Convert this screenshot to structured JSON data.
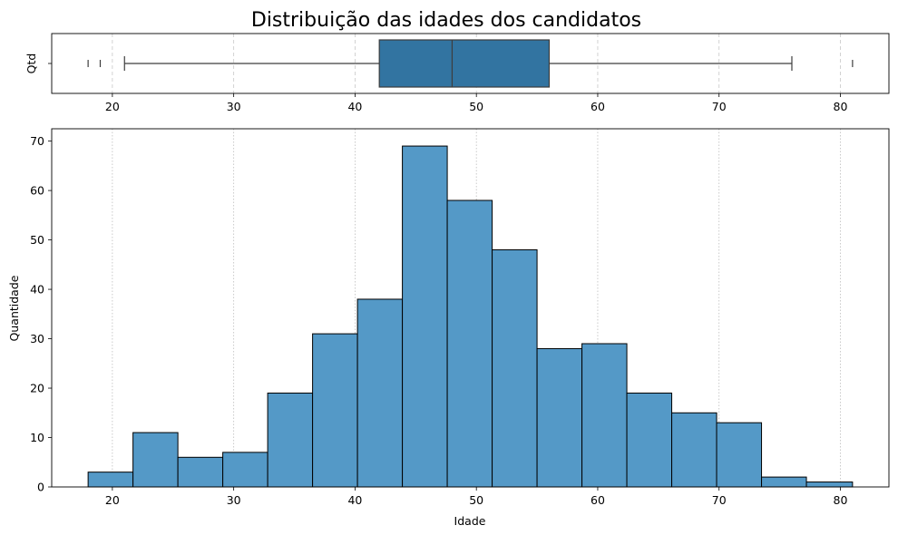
{
  "chart_data": [
    {
      "type": "box",
      "title": "Distribuição das idades dos candidatos",
      "ylabel": "Qtd",
      "xlim": [
        15,
        84
      ],
      "x_ticks": [
        20,
        30,
        40,
        50,
        60,
        70,
        80
      ],
      "grid": "x dashed",
      "box": {
        "whisker_low": 21,
        "q1": 42,
        "median": 48,
        "q3": 56,
        "whisker_high": 76
      },
      "outliers": [
        18,
        19,
        81
      ],
      "color": "#3274a1"
    },
    {
      "type": "histogram",
      "xlabel": "Idade",
      "ylabel": "Quantidade",
      "xlim": [
        15,
        84
      ],
      "ylim": [
        0,
        72.5
      ],
      "x_ticks": [
        20,
        30,
        40,
        50,
        60,
        70,
        80
      ],
      "y_ticks": [
        0,
        10,
        20,
        30,
        40,
        50,
        60,
        70
      ],
      "grid": "x dotted",
      "color": "#5499c7",
      "bins": [
        {
          "start": 18.0,
          "end": 21.7,
          "count": 3
        },
        {
          "start": 21.7,
          "end": 25.4,
          "count": 11
        },
        {
          "start": 25.4,
          "end": 29.1,
          "count": 6
        },
        {
          "start": 29.1,
          "end": 32.8,
          "count": 7
        },
        {
          "start": 32.8,
          "end": 36.5,
          "count": 19
        },
        {
          "start": 36.5,
          "end": 40.2,
          "count": 31
        },
        {
          "start": 40.2,
          "end": 43.9,
          "count": 38
        },
        {
          "start": 43.9,
          "end": 47.6,
          "count": 69
        },
        {
          "start": 47.6,
          "end": 51.3,
          "count": 58
        },
        {
          "start": 51.3,
          "end": 55.0,
          "count": 48
        },
        {
          "start": 55.0,
          "end": 58.7,
          "count": 28
        },
        {
          "start": 58.7,
          "end": 62.4,
          "count": 29
        },
        {
          "start": 62.4,
          "end": 66.1,
          "count": 19
        },
        {
          "start": 66.1,
          "end": 69.8,
          "count": 15
        },
        {
          "start": 69.8,
          "end": 73.5,
          "count": 13
        },
        {
          "start": 73.5,
          "end": 77.2,
          "count": 2
        },
        {
          "start": 77.2,
          "end": 81.0,
          "count": 1
        }
      ]
    }
  ]
}
